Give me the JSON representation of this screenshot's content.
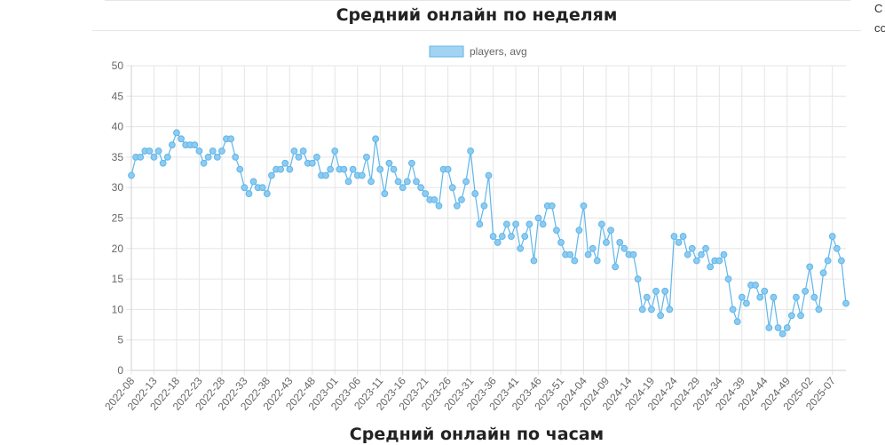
{
  "page": {
    "weekly_title": "Средний онлайн по неделям",
    "hourly_title": "Средний онлайн по часам",
    "side_text": [
      "С",
      "со"
    ]
  },
  "colors": {
    "line": "#5fb6ea",
    "point_fill": "#8ecbf0",
    "legend_fill": "#a3d3f3",
    "grid": "#e5e5e5",
    "tick_text": "#666666"
  },
  "chart_data": {
    "type": "line",
    "title": "Средний онлайн по неделям",
    "xlabel": "",
    "ylabel": "",
    "ylim": [
      0,
      50
    ],
    "yticks": [
      0,
      5,
      10,
      15,
      20,
      25,
      30,
      35,
      40,
      45,
      50
    ],
    "grid": true,
    "legend_position": "top",
    "x_tick_labels": [
      "2022-08",
      "2022-13",
      "2022-18",
      "2022-23",
      "2022-28",
      "2022-33",
      "2022-38",
      "2022-43",
      "2022-48",
      "2023-01",
      "2023-06",
      "2023-11",
      "2023-16",
      "2023-21",
      "2023-26",
      "2023-31",
      "2023-36",
      "2023-41",
      "2023-46",
      "2023-51",
      "2024-04",
      "2024-09",
      "2024-14",
      "2024-19",
      "2024-24",
      "2024-29",
      "2024-34",
      "2024-39",
      "2024-44",
      "2024-49",
      "2025-02",
      "2025-07"
    ],
    "series": [
      {
        "name": "players, avg",
        "values": [
          32,
          35,
          35,
          36,
          36,
          35,
          36,
          34,
          35,
          37,
          39,
          38,
          37,
          37,
          37,
          36,
          34,
          35,
          36,
          35,
          36,
          38,
          38,
          35,
          33,
          30,
          29,
          31,
          30,
          30,
          29,
          32,
          33,
          33,
          34,
          33,
          36,
          35,
          36,
          34,
          34,
          35,
          32,
          32,
          33,
          36,
          33,
          33,
          31,
          33,
          32,
          32,
          35,
          31,
          38,
          33,
          29,
          34,
          33,
          31,
          30,
          31,
          34,
          31,
          30,
          29,
          28,
          28,
          27,
          33,
          33,
          30,
          27,
          28,
          31,
          36,
          29,
          24,
          27,
          32,
          22,
          21,
          22,
          24,
          22,
          24,
          20,
          22,
          24,
          18,
          25,
          24,
          27,
          27,
          23,
          21,
          19,
          19,
          18,
          23,
          27,
          19,
          20,
          18,
          24,
          21,
          23,
          17,
          21,
          20,
          19,
          19,
          15,
          10,
          12,
          10,
          13,
          9,
          13,
          10,
          22,
          21,
          22,
          19,
          20,
          18,
          19,
          20,
          17,
          18,
          18,
          19,
          15,
          10,
          8,
          12,
          11,
          14,
          14,
          12,
          13,
          7,
          12,
          7,
          6,
          7,
          9,
          12,
          9,
          13,
          17,
          12,
          10,
          16,
          18,
          22,
          20,
          18,
          11
        ]
      }
    ]
  }
}
